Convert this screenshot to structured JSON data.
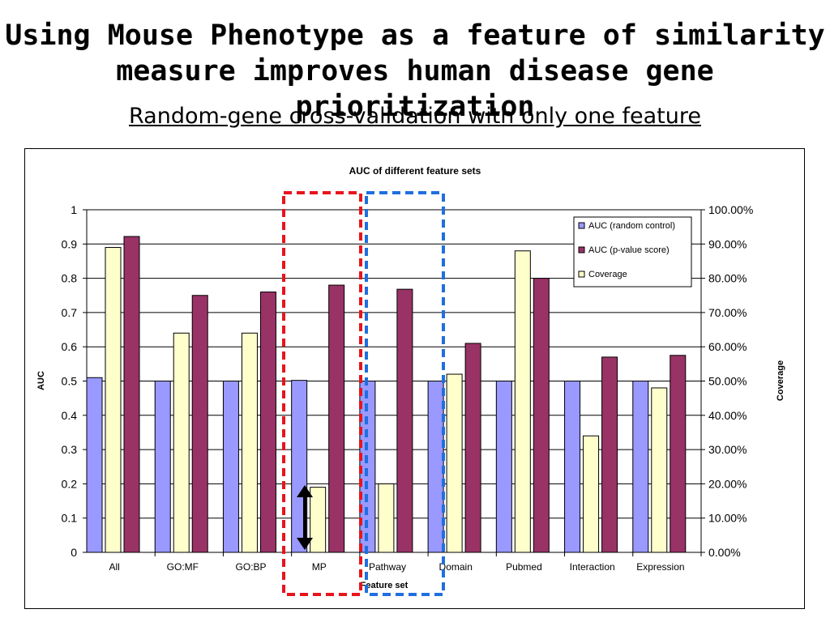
{
  "slide": {
    "title_line1": "Using Mouse Phenotype as a feature of similarity",
    "title_line2": "measure improves human disease gene prioritization",
    "subtitle": "Random-gene cross-validation with only one feature"
  },
  "chart_data": {
    "type": "bar",
    "title": "AUC of different feature sets",
    "xlabel": "Feature set",
    "ylabel": "AUC",
    "y2label": "Coverage",
    "ylim": [
      0,
      1
    ],
    "y2lim": [
      0,
      100
    ],
    "yticks": [
      "0",
      "0.1",
      "0.2",
      "0.3",
      "0.4",
      "0.5",
      "0.6",
      "0.7",
      "0.8",
      "0.9",
      "1"
    ],
    "y2ticks": [
      "0.00%",
      "10.00%",
      "20.00%",
      "30.00%",
      "40.00%",
      "50.00%",
      "60.00%",
      "70.00%",
      "80.00%",
      "90.00%",
      "100.00%"
    ],
    "grid": true,
    "legend_position": "top-right",
    "categories": [
      "All",
      "GO:MF",
      "GO:BP",
      "MP",
      "Pathway",
      "Domain",
      "Pubmed",
      "Interaction",
      "Expression"
    ],
    "series": [
      {
        "name": "AUC (random control)",
        "axis": "left",
        "color": "#9999ff",
        "values": [
          0.51,
          0.5,
          0.5,
          0.502,
          0.5,
          0.5,
          0.5,
          0.5,
          0.5
        ]
      },
      {
        "name": "AUC (p-value score)",
        "axis": "left",
        "color": "#993366",
        "values": [
          0.922,
          0.75,
          0.76,
          0.78,
          0.768,
          0.61,
          0.8,
          0.57,
          0.575
        ]
      },
      {
        "name": "Coverage",
        "axis": "right",
        "unit": "%",
        "color": "#ffffcc",
        "values": [
          89,
          64,
          64,
          19,
          20,
          52,
          88,
          34,
          48
        ]
      }
    ],
    "highlight_colors": {
      "mp_box": "#e8141c",
      "pathway_box": "#1f6fe0"
    }
  }
}
